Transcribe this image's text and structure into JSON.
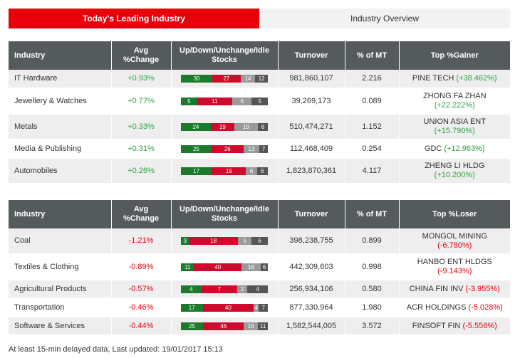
{
  "tabs": [
    {
      "label": "Today's Leading Industry",
      "active": true
    },
    {
      "label": "Industry Overview",
      "active": false
    }
  ],
  "columns_gainer": [
    "Industry",
    "Avg %Change",
    "Up/Down/Unchange/Idle Stocks",
    "Turnover",
    "% of MT",
    "Top %Gainer"
  ],
  "columns_loser": [
    "Industry",
    "Avg %Change",
    "Up/Down/Unchange/Idle Stocks",
    "Turnover",
    "% of MT",
    "Top %Loser"
  ],
  "leading": [
    {
      "industry": "IT Hardware",
      "change": "+0.93%",
      "up": 30,
      "down": 27,
      "unch": 14,
      "idle": 12,
      "turnover": "981,860,107",
      "mt": "2.216",
      "top_name": "PINE TECH",
      "top_pct": "(+38.462%)",
      "wrap": false
    },
    {
      "industry": "Jewellery & Watches",
      "change": "+0.77%",
      "up": 5,
      "down": 11,
      "unch": 6,
      "idle": 5,
      "turnover": "39,269,173",
      "mt": "0.089",
      "top_name": "ZHONG FA ZHAN",
      "top_pct": "(+22.222%)",
      "wrap": true
    },
    {
      "industry": "Metals",
      "change": "+0.33%",
      "up": 24,
      "down": 19,
      "unch": 19,
      "idle": 8,
      "turnover": "510,474,271",
      "mt": "1.152",
      "top_name": "UNION ASIA ENT",
      "top_pct": "(+15.790%)",
      "wrap": true
    },
    {
      "industry": "Media & Publishing",
      "change": "+0.31%",
      "up": 25,
      "down": 26,
      "unch": 13,
      "idle": 7,
      "turnover": "112,468,409",
      "mt": "0.254",
      "top_name": "GDC",
      "top_pct": "(+12.963%)",
      "wrap": false
    },
    {
      "industry": "Automobiles",
      "change": "+0.26%",
      "up": 17,
      "down": 19,
      "unch": 6,
      "idle": 6,
      "turnover": "1,823,870,361",
      "mt": "4.117",
      "top_name": "ZHENG LI HLDG",
      "top_pct": "(+10.200%)",
      "wrap": true
    }
  ],
  "lagging": [
    {
      "industry": "Coal",
      "change": "-1.21%",
      "up": 3,
      "down": 18,
      "unch": 5,
      "idle": 6,
      "turnover": "398,238,755",
      "mt": "0.899",
      "top_name": "MONGOL MINING",
      "top_pct": "(-6.780%)",
      "wrap": true
    },
    {
      "industry": "Textiles & Clothing",
      "change": "-0.89%",
      "up": 11,
      "down": 40,
      "unch": 16,
      "idle": 6,
      "turnover": "442,309,603",
      "mt": "0.998",
      "top_name": "HANBO ENT HLDGS",
      "top_pct": "(-9.143%)",
      "wrap": true
    },
    {
      "industry": "Agricultural Products",
      "change": "-0.57%",
      "up": 4,
      "down": 7,
      "unch": 2,
      "idle": 4,
      "turnover": "256,934,106",
      "mt": "0.580",
      "top_name": "CHINA FIN INV",
      "top_pct": "(-3.955%)",
      "wrap": false
    },
    {
      "industry": "Transportation",
      "change": "-0.46%",
      "up": 17,
      "down": 40,
      "unch": 4,
      "idle": 7,
      "turnover": "877,330,964",
      "mt": "1.980",
      "top_name": "ACR HOLDINGS",
      "top_pct": "(-5.028%)",
      "wrap": false
    },
    {
      "industry": "Software & Services",
      "change": "-0.44%",
      "up": 25,
      "down": 46,
      "unch": 16,
      "idle": 11,
      "turnover": "1,582,544,005",
      "mt": "3.572",
      "top_name": "FINSOFT FIN",
      "top_pct": "(-5.556%)",
      "wrap": false
    }
  ],
  "footer": "At least 15-min delayed data, Last updated: 19/01/2017 15:13",
  "colors": {
    "accent": "#e8000b",
    "header": "#555a5d",
    "positive": "#2aa53d",
    "negative": "#e8000b",
    "bar_up": "#1b7a2b",
    "bar_down": "#cf0a2c",
    "bar_unchanged": "#9a9a9a",
    "bar_idle": "#555555"
  }
}
